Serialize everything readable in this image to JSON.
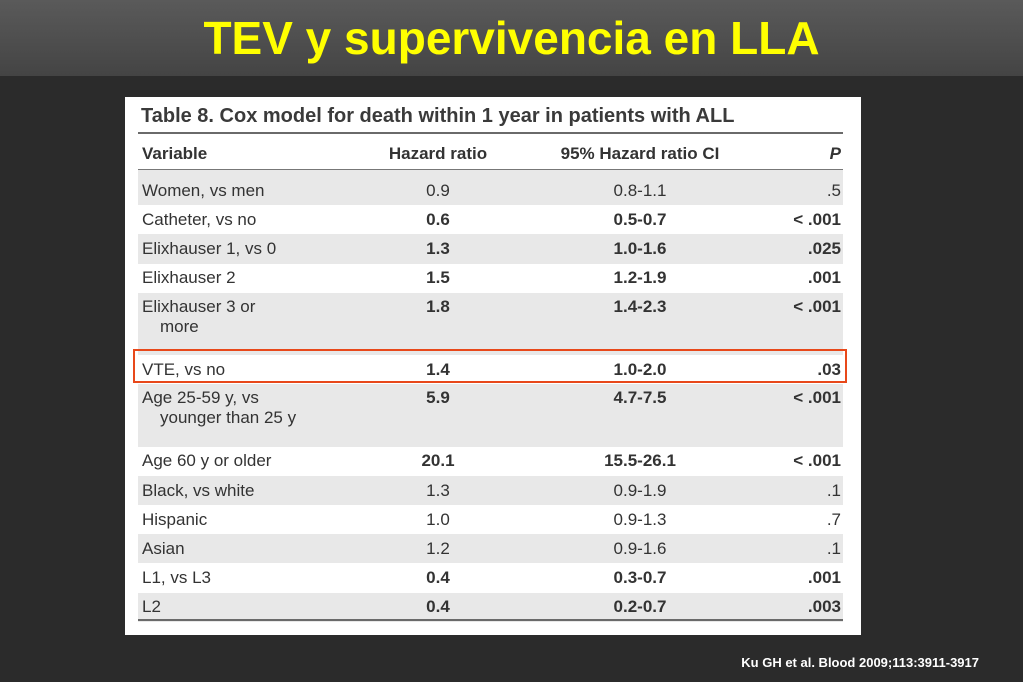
{
  "slide": {
    "title": "TEV y supervivencia en LLA",
    "citation": "Ku GH et al. Blood 2009;113:3911-3917"
  },
  "table": {
    "caption": "Table 8. Cox model for death within 1 year in patients with ALL",
    "columns": [
      "Variable",
      "Hazard ratio",
      "95% Hazard ratio CI",
      "P"
    ],
    "rows": [
      {
        "variable": "Women, vs men",
        "hr": "0.9",
        "ci": "0.8-1.1",
        "p": ".5",
        "bold": false
      },
      {
        "variable": "Catheter, vs no",
        "hr": "0.6",
        "ci": "0.5-0.7",
        "p": "< .001",
        "bold": true
      },
      {
        "variable": "Elixhauser 1, vs 0",
        "hr": "1.3",
        "ci": "1.0-1.6",
        "p": ".025",
        "bold": true
      },
      {
        "variable": "Elixhauser 2",
        "hr": "1.5",
        "ci": "1.2-1.9",
        "p": ".001",
        "bold": true
      },
      {
        "variable": "Elixhauser 3 or",
        "variable_cont": "more",
        "hr": "1.8",
        "ci": "1.4-2.3",
        "p": "< .001",
        "bold": true
      },
      {
        "variable": "VTE, vs no",
        "hr": "1.4",
        "ci": "1.0-2.0",
        "p": ".03",
        "bold": true,
        "highlighted": true
      },
      {
        "variable": "Age 25-59 y, vs",
        "variable_cont": "younger than 25 y",
        "hr": "5.9",
        "ci": "4.7-7.5",
        "p": "< .001",
        "bold": true
      },
      {
        "variable": "Age 60 y or older",
        "hr": "20.1",
        "ci": "15.5-26.1",
        "p": "< .001",
        "bold": true
      },
      {
        "variable": "Black, vs white",
        "hr": "1.3",
        "ci": "0.9-1.9",
        "p": ".1",
        "bold": false
      },
      {
        "variable": "Hispanic",
        "hr": "1.0",
        "ci": "0.9-1.3",
        "p": ".7",
        "bold": false
      },
      {
        "variable": "Asian",
        "hr": "1.2",
        "ci": "0.9-1.6",
        "p": ".1",
        "bold": false
      },
      {
        "variable": "L1, vs L3",
        "hr": "0.4",
        "ci": "0.3-0.7",
        "p": ".001",
        "bold": true
      },
      {
        "variable": "L2",
        "hr": "0.4",
        "ci": "0.2-0.7",
        "p": ".003",
        "bold": true
      }
    ]
  },
  "colors": {
    "title": "#ffff00",
    "highlight_border": "#e8481a",
    "row_shade": "#e8e8e8"
  }
}
